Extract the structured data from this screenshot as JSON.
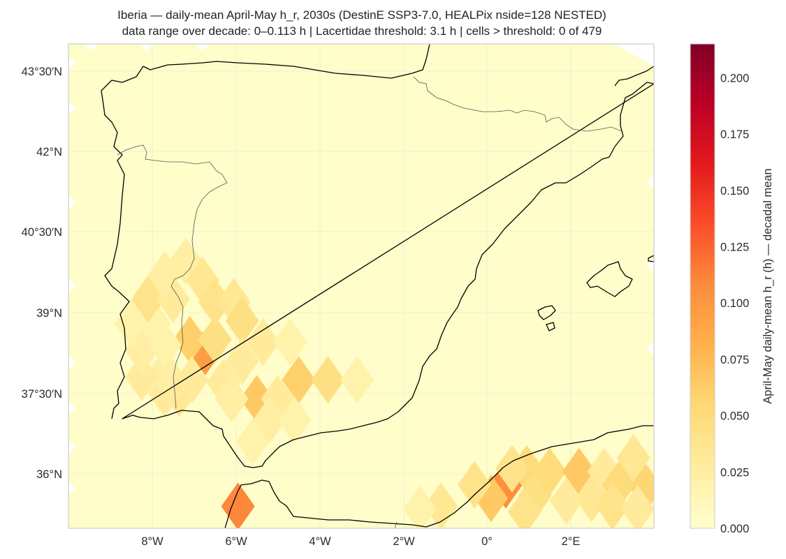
{
  "title_line1": "Iberia — daily-mean April-May h_r, 2030s (DestinE SSP3-7.0, HEALPix nside=128 NESTED)",
  "title_line2": "data range over decade: 0–0.113 h  |  Lacertidae threshold: 3.1 h  |  cells > threshold: 0 of 479",
  "chart_data": {
    "type": "heatmap",
    "projection": "PlateCarree",
    "extent": {
      "lon": [
        -10,
        4
      ],
      "lat": [
        35.2,
        44
      ]
    },
    "x_ticks": [
      {
        "lon": -8,
        "label": "8°W"
      },
      {
        "lon": -6,
        "label": "6°W"
      },
      {
        "lon": -4,
        "label": "4°W"
      },
      {
        "lon": -2,
        "label": "2°W"
      },
      {
        "lon": 0,
        "label": "0°"
      },
      {
        "lon": 2,
        "label": "2°E"
      }
    ],
    "y_ticks": [
      {
        "lat": 36,
        "label": "36°N"
      },
      {
        "lat": 37.5,
        "label": "37°30′N"
      },
      {
        "lat": 39,
        "label": "39°N"
      },
      {
        "lat": 40.5,
        "label": "40°30′N"
      },
      {
        "lat": 42,
        "label": "42°N"
      },
      {
        "lat": 43.5,
        "label": "43°30′N"
      }
    ],
    "colorbar": {
      "colormap": "YlOrRd",
      "range": [
        0,
        0.215
      ],
      "ticks": [
        "0.000",
        "0.025",
        "0.050",
        "0.075",
        "0.100",
        "0.125",
        "0.150",
        "0.175",
        "0.200"
      ],
      "label": "April-May daily-mean h_r (h) — decadal mean"
    },
    "background_value": 0.005,
    "cells": [
      {
        "lon": -6.8,
        "lat": 38.2,
        "v": 0.095
      },
      {
        "lon": -7.1,
        "lat": 38.5,
        "v": 0.06
      },
      {
        "lon": -6.5,
        "lat": 38.5,
        "v": 0.045
      },
      {
        "lon": -7.35,
        "lat": 37.5,
        "v": 0.035
      },
      {
        "lon": -7.05,
        "lat": 37.75,
        "v": 0.03
      },
      {
        "lon": -7.7,
        "lat": 37.5,
        "v": 0.03
      },
      {
        "lon": -7.7,
        "lat": 37.9,
        "v": 0.025
      },
      {
        "lon": -8.25,
        "lat": 37.8,
        "v": 0.03
      },
      {
        "lon": -8.25,
        "lat": 38.3,
        "v": 0.025
      },
      {
        "lon": -7.7,
        "lat": 38.4,
        "v": 0.02
      },
      {
        "lon": -8.5,
        "lat": 38.8,
        "v": 0.02
      },
      {
        "lon": -7.95,
        "lat": 38.8,
        "v": 0.02
      },
      {
        "lon": -8.1,
        "lat": 39.25,
        "v": 0.04
      },
      {
        "lon": -7.5,
        "lat": 39.25,
        "v": 0.03
      },
      {
        "lon": -7.7,
        "lat": 39.7,
        "v": 0.025
      },
      {
        "lon": -7.2,
        "lat": 39.95,
        "v": 0.025
      },
      {
        "lon": -6.8,
        "lat": 39.6,
        "v": 0.035
      },
      {
        "lon": -6.5,
        "lat": 39.2,
        "v": 0.04
      },
      {
        "lon": -6.05,
        "lat": 39.2,
        "v": 0.035
      },
      {
        "lon": -5.85,
        "lat": 38.85,
        "v": 0.045
      },
      {
        "lon": -5.35,
        "lat": 38.45,
        "v": 0.03
      },
      {
        "lon": -4.7,
        "lat": 38.45,
        "v": 0.02
      },
      {
        "lon": -5.85,
        "lat": 38.1,
        "v": 0.03
      },
      {
        "lon": -6.3,
        "lat": 37.7,
        "v": 0.03
      },
      {
        "lon": -5.5,
        "lat": 37.4,
        "v": 0.065
      },
      {
        "lon": -5.0,
        "lat": 37.4,
        "v": 0.03
      },
      {
        "lon": -6.1,
        "lat": 37.4,
        "v": 0.025
      },
      {
        "lon": -4.5,
        "lat": 37.75,
        "v": 0.06
      },
      {
        "lon": -3.8,
        "lat": 37.75,
        "v": 0.045
      },
      {
        "lon": -3.1,
        "lat": 37.75,
        "v": 0.02
      },
      {
        "lon": -5.2,
        "lat": 37.0,
        "v": 0.025
      },
      {
        "lon": -4.6,
        "lat": 37.0,
        "v": 0.02
      },
      {
        "lon": -5.6,
        "lat": 36.6,
        "v": 0.02
      },
      {
        "lon": -5.95,
        "lat": 35.4,
        "v": 0.11
      },
      {
        "lon": 0.45,
        "lat": 35.8,
        "v": 0.105
      },
      {
        "lon": 0.95,
        "lat": 36.1,
        "v": 0.05
      },
      {
        "lon": 0.6,
        "lat": 36.1,
        "v": 0.04
      },
      {
        "lon": 0.1,
        "lat": 35.55,
        "v": 0.065
      },
      {
        "lon": -0.3,
        "lat": 35.8,
        "v": 0.04
      },
      {
        "lon": 1.15,
        "lat": 35.6,
        "v": 0.045
      },
      {
        "lon": 1.5,
        "lat": 36.05,
        "v": 0.05
      },
      {
        "lon": 2.2,
        "lat": 36.05,
        "v": 0.065
      },
      {
        "lon": 2.8,
        "lat": 36.05,
        "v": 0.03
      },
      {
        "lon": 3.5,
        "lat": 36.3,
        "v": 0.035
      },
      {
        "lon": 3.15,
        "lat": 35.8,
        "v": 0.05
      },
      {
        "lon": 3.8,
        "lat": 35.75,
        "v": 0.055
      },
      {
        "lon": 2.5,
        "lat": 35.55,
        "v": 0.035
      },
      {
        "lon": 1.9,
        "lat": 35.5,
        "v": 0.03
      },
      {
        "lon": 3.0,
        "lat": 35.4,
        "v": 0.04
      },
      {
        "lon": 3.6,
        "lat": 35.35,
        "v": 0.03
      },
      {
        "lon": -1.1,
        "lat": 35.4,
        "v": 0.035
      },
      {
        "lon": -1.6,
        "lat": 35.35,
        "v": 0.02
      },
      {
        "lon": 0.9,
        "lat": 35.3,
        "v": 0.04
      }
    ]
  }
}
